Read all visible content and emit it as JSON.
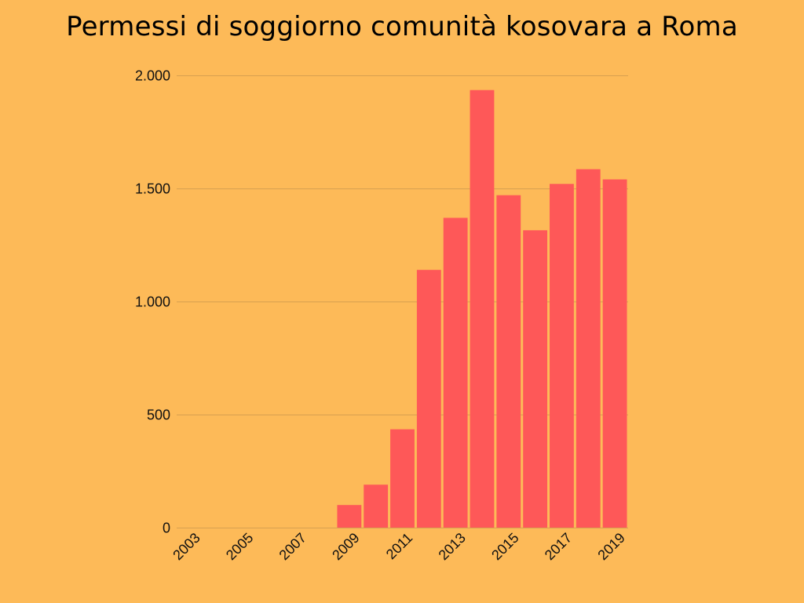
{
  "colors": {
    "background": "#FDBA58",
    "bar": "#FE5858",
    "gridline": "#D7A050",
    "text": "#000000"
  },
  "chart_data": {
    "type": "bar",
    "title": "Permessi di soggiorno comunità kosovara a Roma",
    "xlabel": "",
    "ylabel": "",
    "categories": [
      "2003",
      "2004",
      "2005",
      "2006",
      "2007",
      "2008",
      "2009",
      "2010",
      "2011",
      "2012",
      "2013",
      "2014",
      "2015",
      "2016",
      "2017",
      "2018",
      "2019"
    ],
    "x_tick_labels": [
      "2003",
      "2005",
      "2007",
      "2009",
      "2011",
      "2013",
      "2015",
      "2017",
      "2019"
    ],
    "values": [
      0,
      0,
      0,
      0,
      0,
      0,
      100,
      190,
      435,
      1140,
      1370,
      1935,
      1470,
      1315,
      1520,
      1585,
      1540
    ],
    "ylim": [
      0,
      2000
    ],
    "y_ticks": [
      0,
      500,
      1000,
      1500,
      2000
    ],
    "y_tick_labels": [
      "0",
      "500",
      "1.000",
      "1.500",
      "2.000"
    ],
    "grid": true,
    "legend": "none"
  }
}
